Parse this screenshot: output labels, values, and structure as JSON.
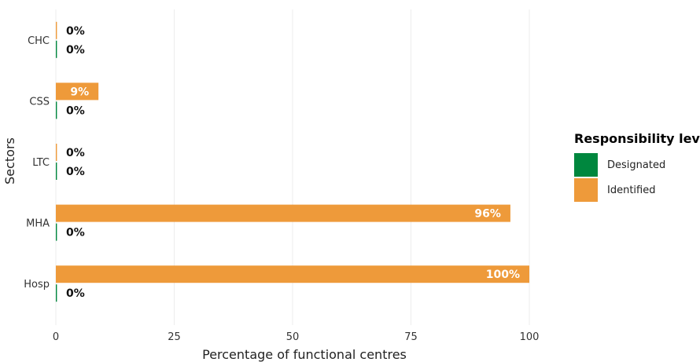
{
  "chart_data": {
    "type": "bar",
    "orientation": "horizontal",
    "title": "",
    "xlabel": "Percentage of functional centres",
    "ylabel": "Sectors",
    "xlim": [
      0,
      100
    ],
    "x_ticks": [
      "0",
      "25",
      "50",
      "75",
      "100"
    ],
    "categories": [
      "CHC",
      "CSS",
      "LTC",
      "MHA",
      "Hosp"
    ],
    "grid": "vertical",
    "legend": {
      "title": "Responsibility level",
      "position": "right",
      "items": [
        {
          "label": "Designated",
          "color": "#00873E"
        },
        {
          "label": "Identified",
          "color": "#EE9A3A"
        }
      ]
    },
    "series": [
      {
        "name": "Identified",
        "color": "#EE9A3A",
        "values": [
          0,
          9,
          0,
          96,
          100
        ],
        "labels": [
          "0%",
          "9%",
          "0%",
          "96%",
          "100%"
        ]
      },
      {
        "name": "Designated",
        "color": "#00873E",
        "values": [
          0,
          0,
          0,
          0,
          0
        ],
        "labels": [
          "0%",
          "0%",
          "0%",
          "0%",
          "0%"
        ]
      }
    ]
  }
}
